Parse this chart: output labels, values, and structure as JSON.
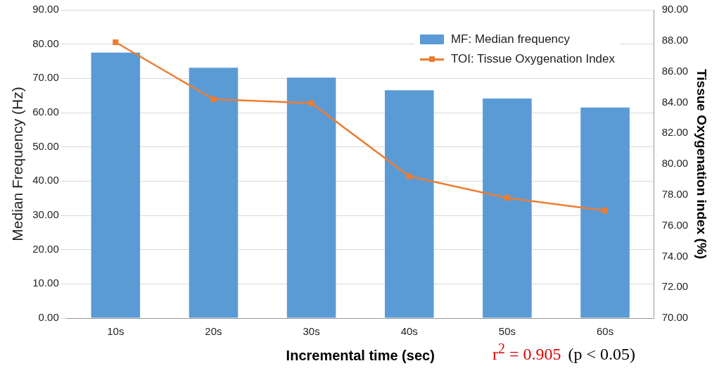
{
  "chart_data": {
    "type": "bar",
    "xlabel": "Incremental time (sec)",
    "ylabel": "Median Frequency (Hz)",
    "y2label": "Tissue Oxygenation index (%)",
    "categories": [
      "10s",
      "20s",
      "30s",
      "40s",
      "50s",
      "60s"
    ],
    "series": [
      {
        "name": "MF: Median frequency",
        "color": "#5b9bd5",
        "values": [
          77.5,
          73.1,
          70.2,
          66.5,
          64.1,
          61.5
        ]
      },
      {
        "name": "TOI: Tissue Oxygenation Index",
        "type": "line",
        "axis": "y2",
        "color": "#ed7d31",
        "marker": "square",
        "values": [
          87.9,
          84.2,
          83.95,
          79.2,
          77.8,
          76.98
        ]
      }
    ],
    "ylim": [
      0,
      90
    ],
    "yticks": [
      {
        "value": 0,
        "label": "0.00"
      },
      {
        "value": 10,
        "label": "10.00"
      },
      {
        "value": 20,
        "label": "20.00"
      },
      {
        "value": 30,
        "label": "30.00"
      },
      {
        "value": 40,
        "label": "40.00"
      },
      {
        "value": 50,
        "label": "50.00"
      },
      {
        "value": 60,
        "label": "60.00"
      },
      {
        "value": 70,
        "label": "70.00"
      },
      {
        "value": 80,
        "label": "80.00"
      },
      {
        "value": 90,
        "label": "90.00"
      }
    ],
    "y2lim": [
      70,
      90
    ],
    "y2ticks": [
      {
        "value": 70,
        "label": "70.00"
      },
      {
        "value": 72,
        "label": "72.00"
      },
      {
        "value": 74,
        "label": "74.00"
      },
      {
        "value": 76,
        "label": "76.00"
      },
      {
        "value": 78,
        "label": "78.00"
      },
      {
        "value": 80,
        "label": "80.00"
      },
      {
        "value": 82,
        "label": "82.00"
      },
      {
        "value": 84,
        "label": "84.00"
      },
      {
        "value": 86,
        "label": "86.00"
      },
      {
        "value": 88,
        "label": "88.00"
      },
      {
        "value": 90,
        "label": "90.00"
      }
    ],
    "grid": "y",
    "legend": "top right",
    "annotations": [
      "r$^{2}$ = 0.905",
      "(p < 0.05)"
    ]
  }
}
